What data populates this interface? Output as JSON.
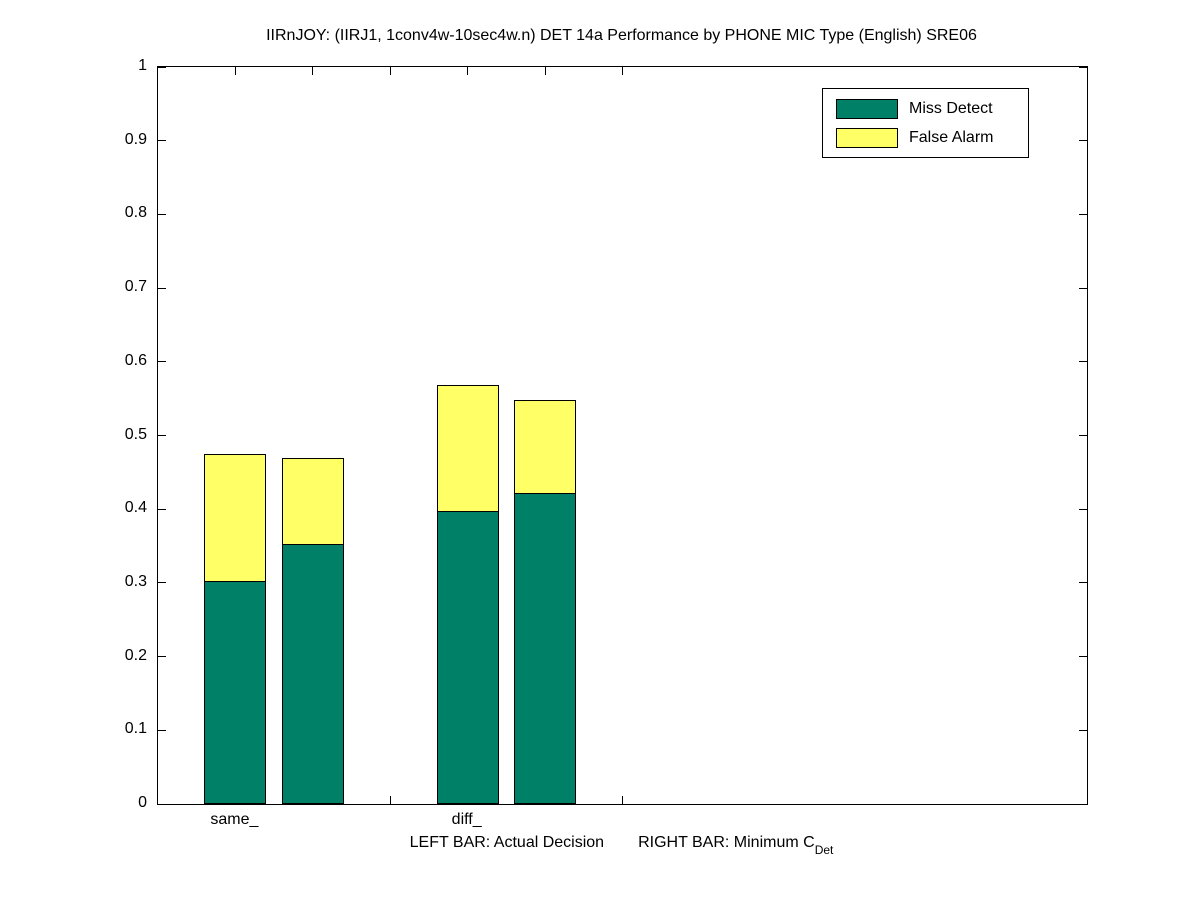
{
  "title": "IIRnJOY: (IIRJ1, 1conv4w-10sec4w.n) DET 14a Performance by PHONE MIC Type (English) SRE06",
  "xlabel": {
    "left_note": "LEFT BAR: Actual Decision",
    "right_note": "RIGHT BAR: Minimum C",
    "right_note_sub": "Det"
  },
  "legend": {
    "items": [
      {
        "label": "Miss Detect",
        "color": "#008066"
      },
      {
        "label": "False Alarm",
        "color": "#ffff66"
      }
    ]
  },
  "colors": {
    "miss_detect": "#008066",
    "false_alarm": "#ffff66",
    "axis": "#000000",
    "background": "#ffffff"
  },
  "chart_data": {
    "type": "bar",
    "stacked": true,
    "title": "IIRnJOY: (IIRJ1, 1conv4w-10sec4w.n) DET 14a Performance by PHONE MIC Type (English) SRE06",
    "categories": [
      "same_",
      "diff_"
    ],
    "series_names": [
      "Miss Detect",
      "False Alarm"
    ],
    "left_bar_meaning": "Actual Decision",
    "right_bar_meaning": "Minimum C_Det",
    "ylim": [
      0,
      1
    ],
    "xlim": [
      0,
      12
    ],
    "bar_width_units": 0.8,
    "grid": false,
    "legend_position": "top-right-inside",
    "yticks": [
      {
        "v": 0.0,
        "label": "0"
      },
      {
        "v": 0.1,
        "label": "0.1"
      },
      {
        "v": 0.2,
        "label": "0.2"
      },
      {
        "v": 0.3,
        "label": "0.3"
      },
      {
        "v": 0.4,
        "label": "0.4"
      },
      {
        "v": 0.5,
        "label": "0.5"
      },
      {
        "v": 0.6,
        "label": "0.6"
      },
      {
        "v": 0.7,
        "label": "0.7"
      },
      {
        "v": 0.8,
        "label": "0.8"
      },
      {
        "v": 0.9,
        "label": "0.9"
      },
      {
        "v": 1.0,
        "label": "1"
      }
    ],
    "xticks": [
      {
        "x": 1,
        "label": "same_"
      },
      {
        "x": 2,
        "label": ""
      },
      {
        "x": 3,
        "label": ""
      },
      {
        "x": 4,
        "label": "diff_"
      },
      {
        "x": 5,
        "label": ""
      },
      {
        "x": 6,
        "label": ""
      }
    ],
    "bars": [
      {
        "x": 1,
        "category": "same_",
        "bar": "Actual Decision",
        "miss_detect": 0.302,
        "false_alarm": 0.173,
        "total": 0.475
      },
      {
        "x": 2,
        "category": "same_",
        "bar": "Minimum C_Det",
        "miss_detect": 0.353,
        "false_alarm": 0.117,
        "total": 0.47
      },
      {
        "x": 4,
        "category": "diff_",
        "bar": "Actual Decision",
        "miss_detect": 0.397,
        "false_alarm": 0.171,
        "total": 0.568
      },
      {
        "x": 5,
        "category": "diff_",
        "bar": "Minimum C_Det",
        "miss_detect": 0.422,
        "false_alarm": 0.126,
        "total": 0.548
      }
    ]
  }
}
